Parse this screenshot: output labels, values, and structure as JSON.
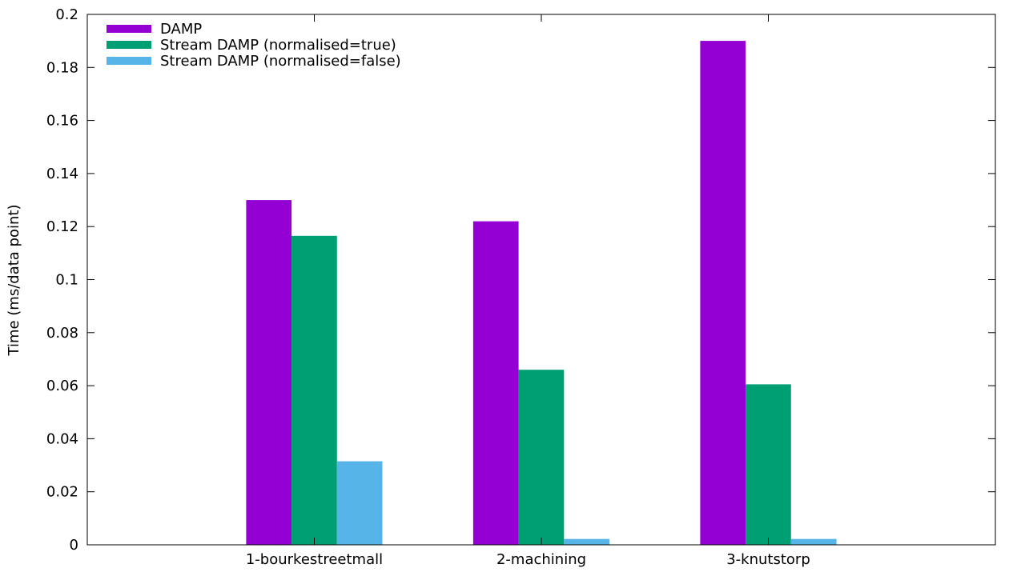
{
  "chart_data": {
    "type": "bar",
    "title": "",
    "xlabel": "",
    "ylabel": "Time (ms/data point)",
    "ylim": [
      0,
      0.2
    ],
    "yticks": [
      "0",
      "0.02",
      "0.04",
      "0.06",
      "0.08",
      "0.1",
      "0.12",
      "0.14",
      "0.16",
      "0.18",
      "0.2"
    ],
    "categories": [
      "1-bourkestreetmall",
      "2-machining",
      "3-knutstorp"
    ],
    "series": [
      {
        "name": "DAMP",
        "color": "#9400d3",
        "values": [
          0.13,
          0.122,
          0.19
        ]
      },
      {
        "name": "Stream DAMP (normalised=true)",
        "color": "#009e73",
        "values": [
          0.1165,
          0.066,
          0.0605
        ]
      },
      {
        "name": "Stream DAMP (normalised=false)",
        "color": "#56b4e9",
        "values": [
          0.0315,
          0.0022,
          0.0022
        ]
      }
    ],
    "legend_position": "top-left",
    "grid": false
  }
}
